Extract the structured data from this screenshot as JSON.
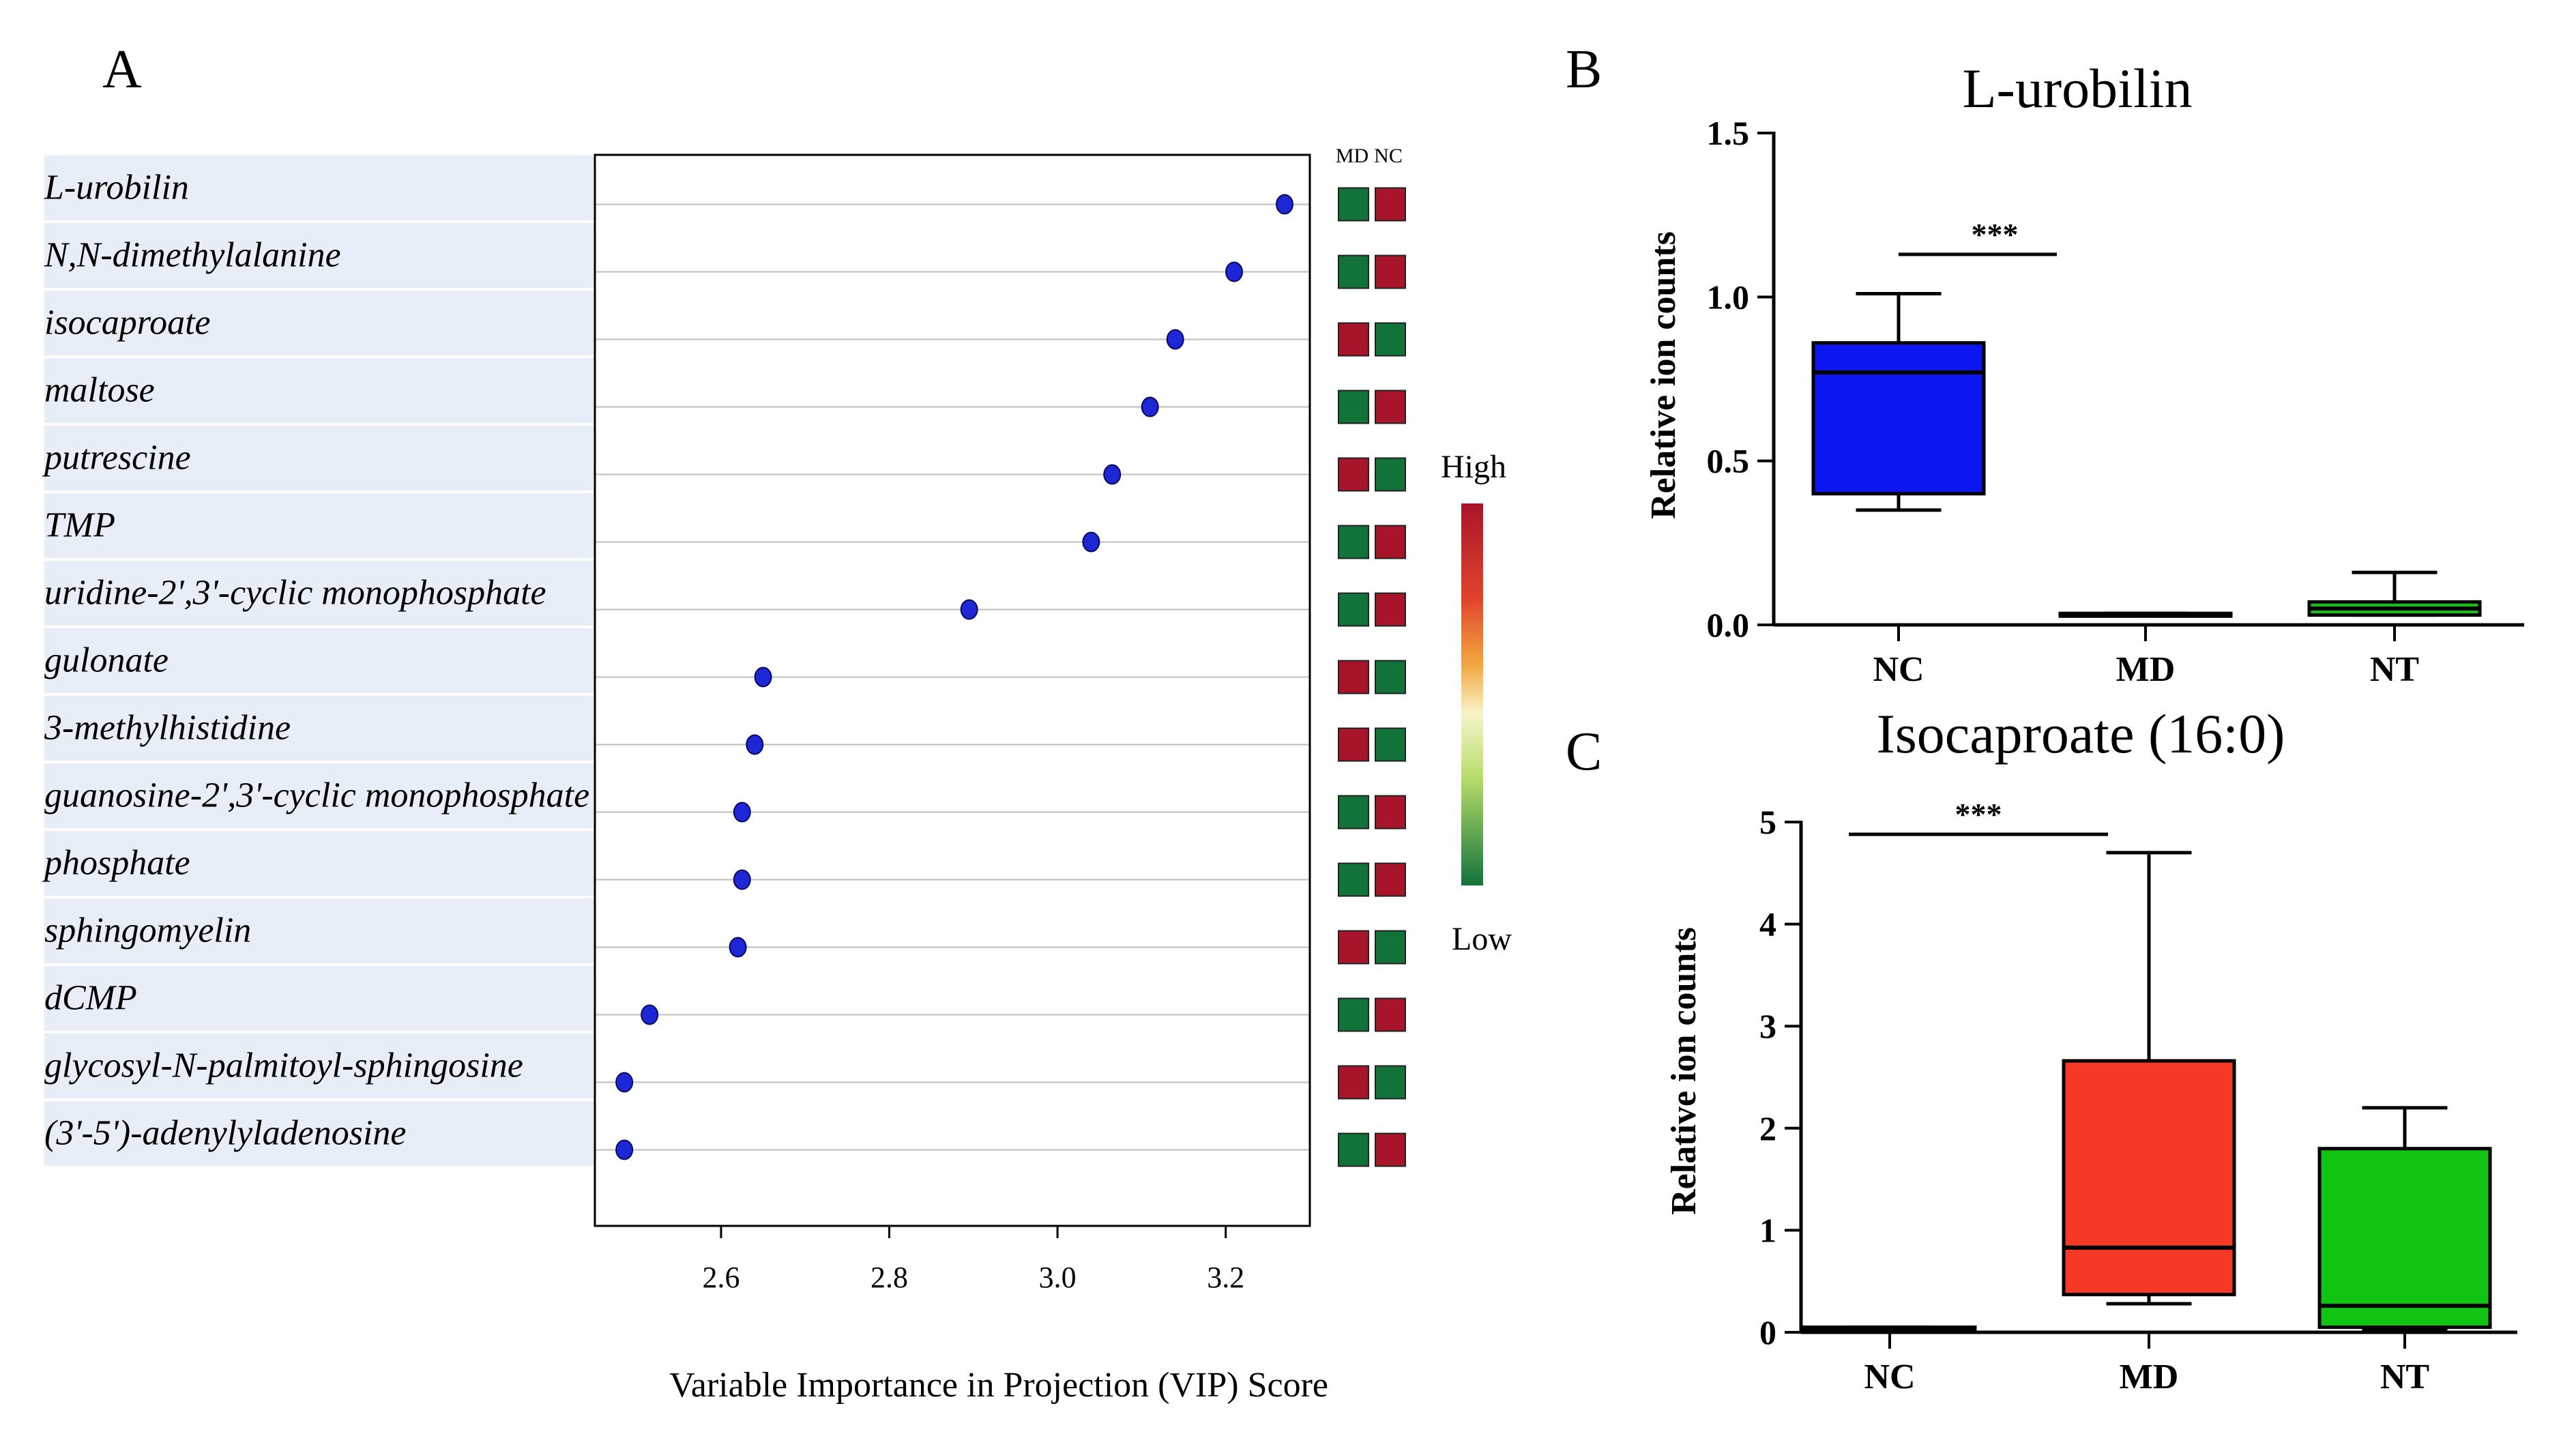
{
  "panel_labels": [
    "A",
    "B",
    "C"
  ],
  "colors": {
    "dot": "#1e27d6",
    "row_band": "#e8eef8",
    "heat_high": "#a8152a",
    "heat_low": "#12733a",
    "box_NC": "#0b16f0",
    "box_MD": "#f43a26",
    "box_NT": "#11c411"
  },
  "heatmap": {
    "columns": [
      "MD",
      "NC"
    ],
    "legend_high": "High",
    "legend_low": "Low"
  },
  "chart_data": [
    {
      "type": "scatter",
      "panel": "A",
      "title": "",
      "xlabel": "Variable  Importance  in  Projection  (VIP)  Score",
      "ylabel": "",
      "xlim": [
        2.45,
        3.3
      ],
      "xticks": [
        "2.6",
        "2.8",
        "3.0",
        "3.2"
      ],
      "xtick_values": [
        2.6,
        2.8,
        3.0,
        3.2
      ],
      "grid": "horizontal",
      "categories": [
        "L-urobilin",
        "N,N-dimethylalanine",
        "isocaproate",
        "maltose",
        "putrescine",
        "TMP",
        "uridine-2',3'-cyclic monophosphate",
        "gulonate",
        "3-methylhistidine",
        "guanosine-2',3'-cyclic monophosphate",
        "phosphate",
        "sphingomyelin",
        "dCMP",
        "glycosyl-N-palmitoyl-sphingosine",
        "(3'-5')-adenylyladenosine"
      ],
      "values": [
        3.27,
        3.21,
        3.14,
        3.11,
        3.065,
        3.04,
        2.895,
        2.65,
        2.64,
        2.625,
        2.625,
        2.62,
        2.515,
        2.485,
        2.485
      ],
      "heatmap_levels": [
        [
          "low",
          "high"
        ],
        [
          "low",
          "high"
        ],
        [
          "high",
          "low"
        ],
        [
          "low",
          "high"
        ],
        [
          "high",
          "low"
        ],
        [
          "low",
          "high"
        ],
        [
          "low",
          "high"
        ],
        [
          "high",
          "low"
        ],
        [
          "high",
          "low"
        ],
        [
          "low",
          "high"
        ],
        [
          "low",
          "high"
        ],
        [
          "high",
          "low"
        ],
        [
          "low",
          "high"
        ],
        [
          "high",
          "low"
        ],
        [
          "low",
          "high"
        ]
      ]
    },
    {
      "type": "box",
      "panel": "B",
      "title": "L-urobilin",
      "xlabel": "",
      "ylabel": "Relative ion counts",
      "ylim": [
        0,
        1.5
      ],
      "yticks": [
        "0.0",
        "0.5",
        "1.0",
        "1.5"
      ],
      "ytick_values": [
        0,
        0.5,
        1.0,
        1.5
      ],
      "categories": [
        "NC",
        "MD",
        "NT"
      ],
      "boxes": [
        {
          "group": "NC",
          "min": 0.35,
          "q1": 0.4,
          "median": 0.77,
          "q3": 0.86,
          "max": 1.01
        },
        {
          "group": "MD",
          "min": 0.03,
          "q1": 0.03,
          "median": 0.03,
          "q3": 0.035,
          "max": 0.035
        },
        {
          "group": "NT",
          "min": 0.03,
          "q1": 0.03,
          "median": 0.05,
          "q3": 0.07,
          "max": 0.16
        }
      ],
      "significance": {
        "from": "NC",
        "to": "MD",
        "label": "***",
        "y": 1.13
      }
    },
    {
      "type": "box",
      "panel": "C",
      "title": "Isocaproate (16:0)",
      "xlabel": "",
      "ylabel": "Relative ion counts",
      "ylim": [
        0,
        5
      ],
      "yticks": [
        "0",
        "1",
        "2",
        "3",
        "4",
        "5"
      ],
      "ytick_values": [
        0,
        1,
        2,
        3,
        4,
        5
      ],
      "categories": [
        "NC",
        "MD",
        "NT"
      ],
      "boxes": [
        {
          "group": "NC",
          "min": 0.02,
          "q1": 0.02,
          "median": 0.04,
          "q3": 0.05,
          "max": 0.05
        },
        {
          "group": "MD",
          "min": 0.28,
          "q1": 0.37,
          "median": 0.83,
          "q3": 2.66,
          "max": 4.7
        },
        {
          "group": "NT",
          "min": 0.02,
          "q1": 0.05,
          "median": 0.26,
          "q3": 1.8,
          "max": 2.2
        }
      ],
      "significance": {
        "from": "NC",
        "to": "MD",
        "label": "***",
        "y": 4.88
      }
    }
  ]
}
